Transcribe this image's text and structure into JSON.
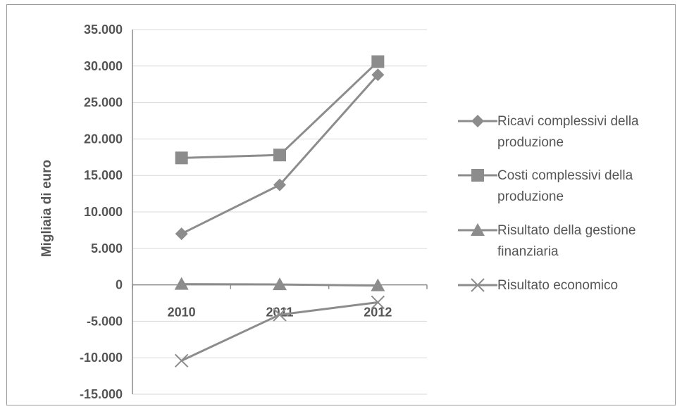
{
  "chart_data": {
    "type": "line",
    "categories": [
      "2010",
      "2011",
      "2012"
    ],
    "ylabel": "Migliaia di euro",
    "ylim": [
      -15000,
      35000
    ],
    "ytick_labels": [
      "35.000",
      "30.000",
      "25.000",
      "20.000",
      "15.000",
      "10.000",
      "5.000",
      "0",
      "-5.000",
      "-10.000",
      "-15.000"
    ],
    "yticks": [
      35000,
      30000,
      25000,
      20000,
      15000,
      10000,
      5000,
      0,
      -5000,
      -10000,
      -15000
    ],
    "grid": true,
    "legend_position": "right",
    "series": [
      {
        "name": "Ricavi complessivi della produzione",
        "name_lines": [
          "Ricavi complessivi della",
          "produzione"
        ],
        "marker": "diamond",
        "values": [
          7000,
          13700,
          28800
        ]
      },
      {
        "name": "Costi complessivi della produzione",
        "name_lines": [
          "Costi complessivi della",
          "produzione"
        ],
        "marker": "square",
        "values": [
          17400,
          17800,
          30600
        ]
      },
      {
        "name": "Risultato della gestione finanziaria",
        "name_lines": [
          "Risultato della gestione",
          "finanziaria"
        ],
        "marker": "triangle",
        "values": [
          100,
          50,
          -100
        ]
      },
      {
        "name": "Risultato economico",
        "name_lines": [
          "Risultato economico"
        ],
        "marker": "x",
        "values": [
          -10400,
          -4100,
          -2400
        ]
      }
    ]
  },
  "colors": {
    "series_line": "#8c8c8c",
    "axis": "#8c8c8c",
    "grid": "#d9d9d9",
    "text": "#555555",
    "frame": "#9a9a9a"
  }
}
